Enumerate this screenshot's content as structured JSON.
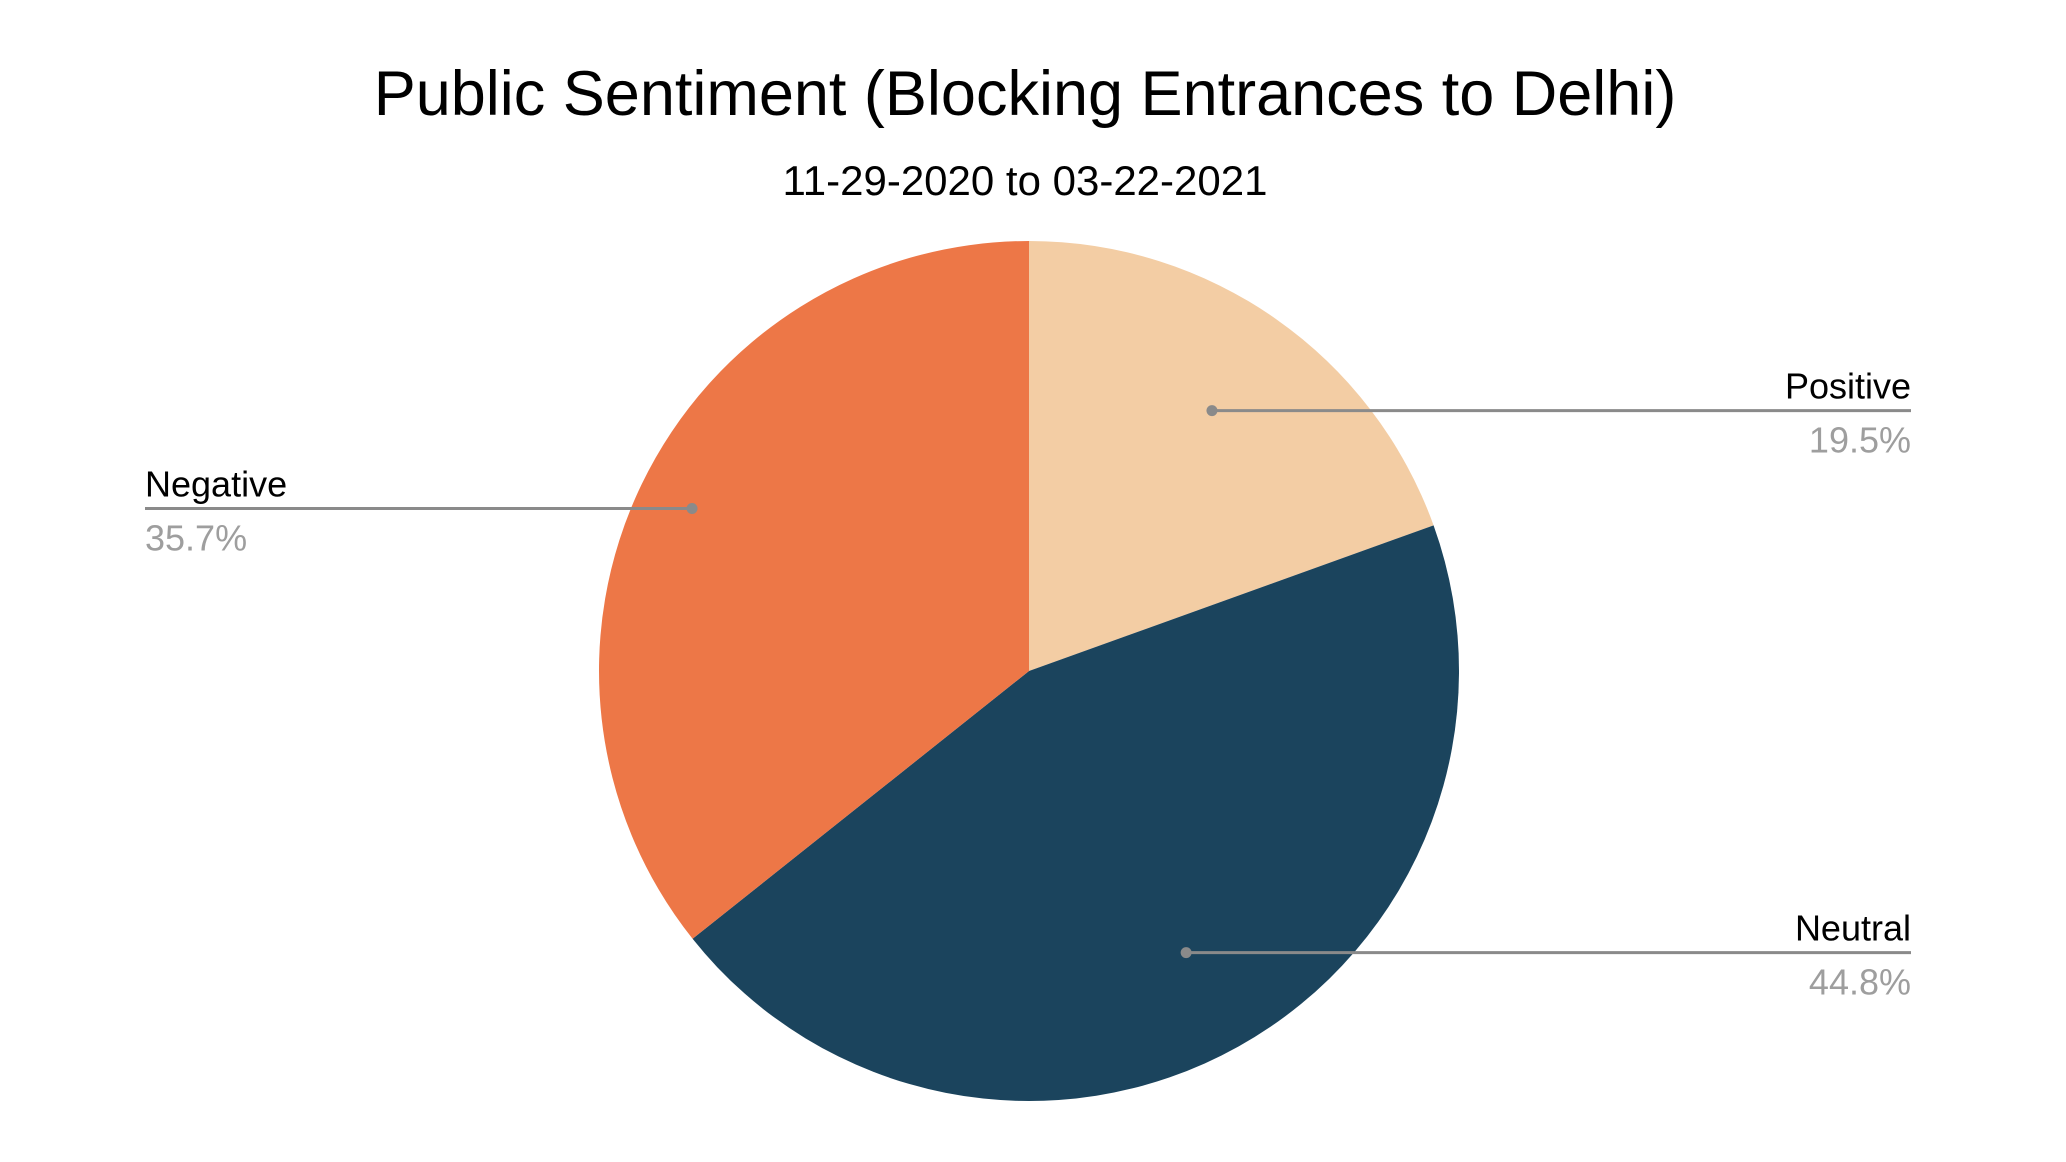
{
  "chart_data": {
    "type": "pie",
    "title": "Public Sentiment (Blocking Entrances to Delhi)",
    "subtitle": "11-29-2020 to 03-22-2021",
    "start_angle_deg": 0,
    "direction": "clockwise",
    "slices": [
      {
        "key": "positive",
        "label": "Positive",
        "value": 19.5,
        "value_label": "19.5%",
        "color": "#f3cda4"
      },
      {
        "key": "neutral",
        "label": "Neutral",
        "value": 44.8,
        "value_label": "44.8%",
        "color": "#1b445d"
      },
      {
        "key": "negative",
        "label": "Negative",
        "value": 35.7,
        "value_label": "35.7%",
        "color": "#ed7747"
      }
    ],
    "legend": "none (slice labels with leader lines)"
  }
}
